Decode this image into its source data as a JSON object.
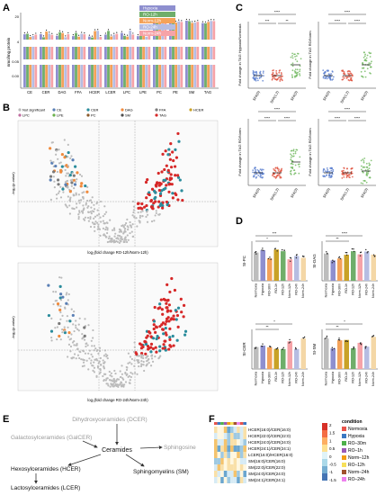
{
  "panels": {
    "A": {
      "label": "A",
      "ylabel": "nmol/mg protein",
      "legend": [
        "Hypoxia",
        "RO-12h",
        "Norm-12h",
        "RO-24h",
        "Norm-24h"
      ],
      "legend_colors": [
        "#8e8fcf",
        "#6fae6a",
        "#f4a259",
        "#b6bde2",
        "#f6a3a8"
      ],
      "ticks": [
        "20",
        "4",
        "0.05",
        "0.00"
      ],
      "categories": [
        "CE",
        "CER",
        "DAG",
        "FFA",
        "HCER",
        "LCER",
        "LPC",
        "LPE",
        "PC",
        "PE",
        "SM",
        "TAG"
      ]
    },
    "B": {
      "label": "B",
      "legend": [
        "Not significant",
        "CE",
        "CER",
        "DAG",
        "FFA",
        "HCER",
        "LPC",
        "LPE",
        "PC",
        "SM",
        "TAG"
      ],
      "legend_colors": [
        "#bbbbbb",
        "#5a7fb5",
        "#2a8c9c",
        "#f08a3c",
        "#7a7a7a",
        "#c9a227",
        "#c06da0",
        "#6ab04c",
        "#8b5a2b",
        "#4d4d4d",
        "#d62828"
      ],
      "top_xlabel": "log₂(fold change RO-12h/Norm-12h)",
      "bottom_xlabel": "log₂(fold change RO-24h/Norm-24h)",
      "ylabel": "-log₁₀(p-value)"
    },
    "C": {
      "label": "C",
      "groups": [
        "SFA(0)",
        "SFA(1,2)",
        "SFA(3)"
      ],
      "ylabels": [
        "Fold change in TAG Hypoxia/Normoxia",
        "Fold change in TAG RO/Norm",
        "Fold change in TAG RO/Norm",
        "Fold change in TAG RO/Norm"
      ],
      "sig": [
        "****",
        "***",
        "**",
        "****",
        "****",
        "****",
        "****"
      ],
      "colors": [
        "#5b7fd0",
        "#e0533e",
        "#6fb85e"
      ]
    },
    "D": {
      "label": "D",
      "subplots": [
        "SI-PC",
        "SI-DAG",
        "SI-CER",
        "SI-SM"
      ],
      "xcats": [
        "Normoxia",
        "Hypoxia",
        "RO-30m",
        "RO-1h",
        "RO-12h",
        "Norm-12h",
        "RO-24h",
        "Norm-24h"
      ],
      "bar_colors": [
        "#bdbdbd",
        "#8e8fcf",
        "#f4a259",
        "#c9a227",
        "#6fae6a",
        "#f6a3a8",
        "#b6bde2",
        "#f4d7a6"
      ],
      "sig": [
        "***",
        "*",
        "****",
        "**",
        "*",
        "**",
        "*",
        "**",
        "*",
        "*"
      ]
    },
    "E": {
      "label": "E",
      "nodes": {
        "dcer": "Dihydroxyceramides (DCER)",
        "galcer": "Galactosylceramides (GalCER)",
        "cer": "Ceramides",
        "sph": "Sphingosine",
        "hcer": "Hexosylceramides (HCER)",
        "sm": "Sphingomyelins (SM)",
        "lcer": "Lactosylceramides (LCER)"
      }
    },
    "F": {
      "label": "F",
      "rows": [
        "HCER(16:0)/CER(16:0)",
        "HCER(22:0)/CER(22:0)",
        "HCER(24:0)/CER(24:0)",
        "HCER(24:1)/CER(24:1)",
        "LCER(16:0)/HCER(16:0)",
        "SM(16:0)/CER(16:0)",
        "SM(22:0)/CER(22:0)",
        "SM(24:0)/CER(24:0)",
        "SM(24:1)/CER(24:1)"
      ],
      "colorbar_ticks": [
        "2",
        "1.5",
        "1",
        "0.5",
        "0",
        "-0.5",
        "-1",
        "-1.5"
      ],
      "condition_title": "condition",
      "conditions": [
        "Normoxia",
        "Hypoxia",
        "RO–30m",
        "RO–1h",
        "Norm–12h",
        "RO–12h",
        "Norm–24h",
        "RO–24h"
      ],
      "condition_colors": [
        "#e8534a",
        "#3a78c2",
        "#4db04a",
        "#9b59b6",
        "#f39c12",
        "#f7e05a",
        "#a0522d",
        "#ee82ee"
      ]
    }
  }
}
